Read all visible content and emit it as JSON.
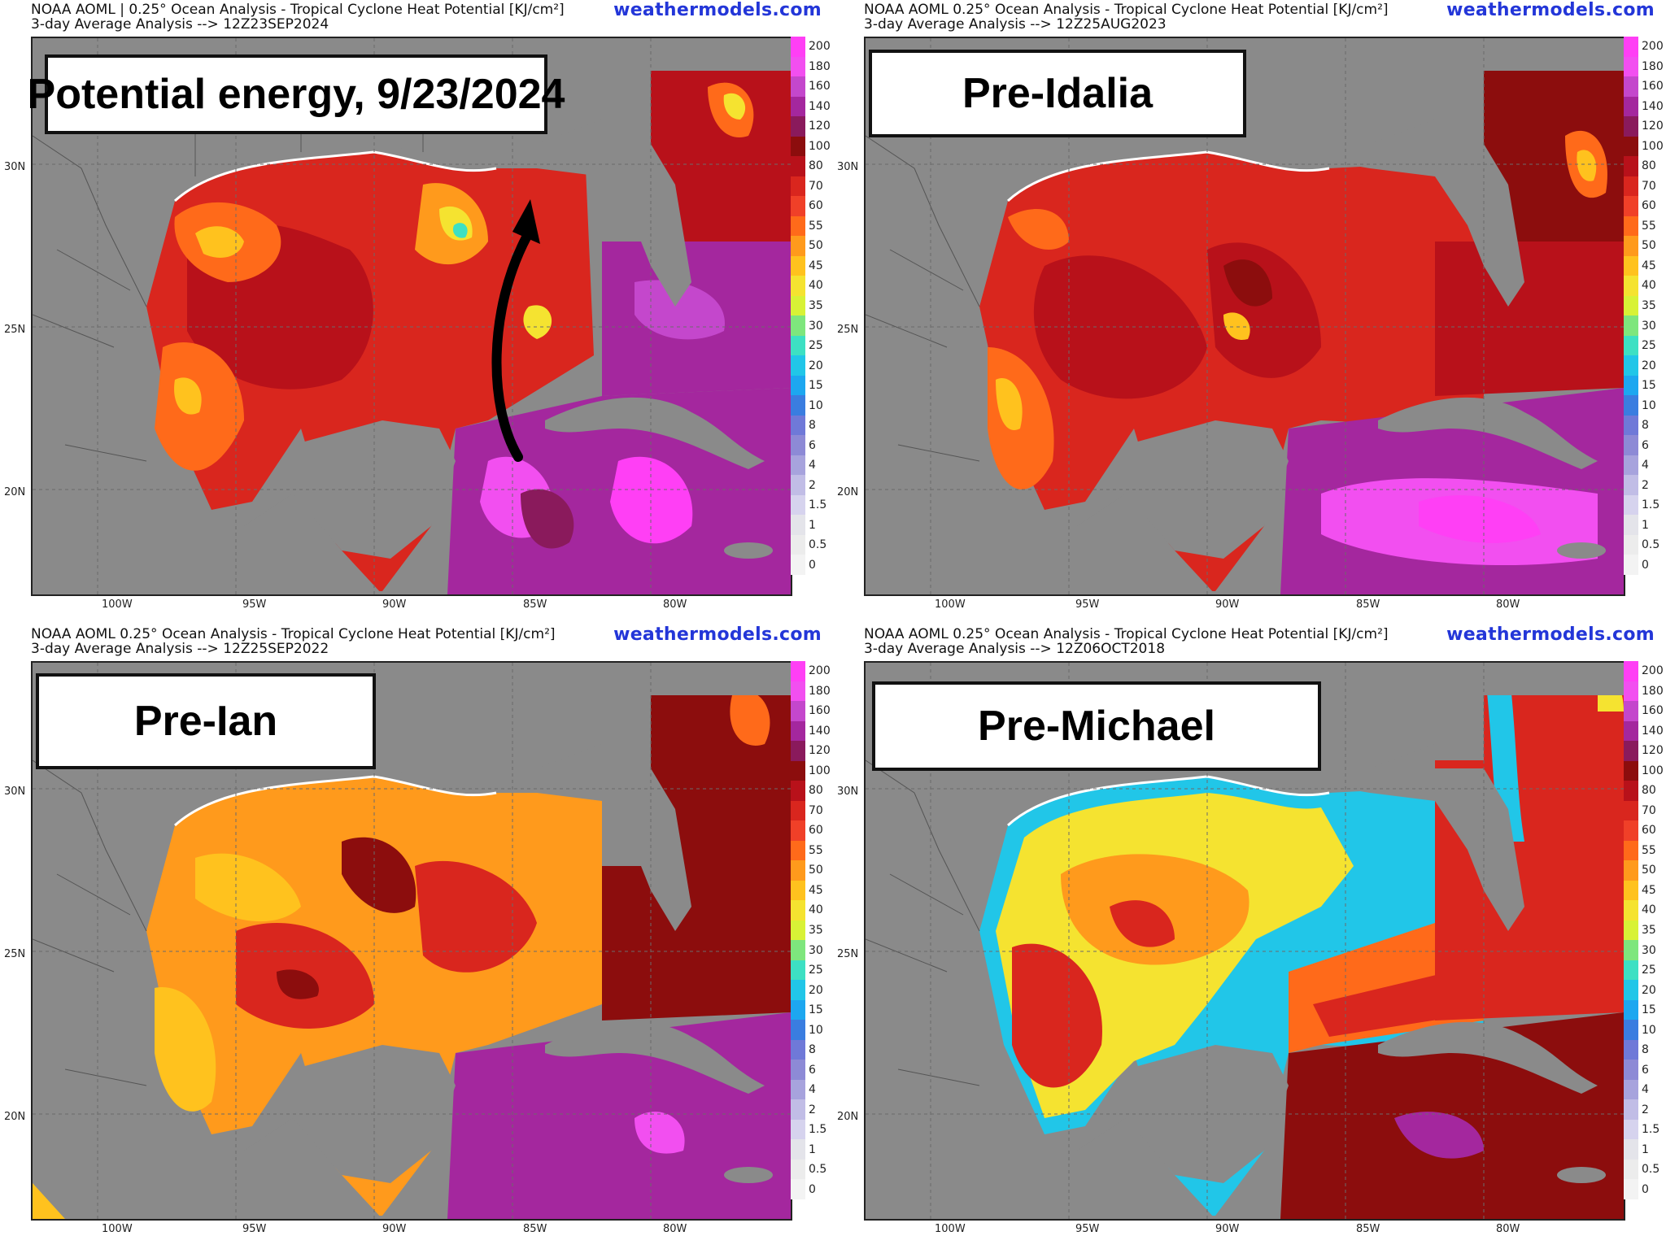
{
  "brand": "weathermodels.com",
  "colorbar": {
    "ticks": [
      "200",
      "180",
      "160",
      "140",
      "120",
      "100",
      "80",
      "70",
      "60",
      "55",
      "50",
      "45",
      "40",
      "35",
      "30",
      "25",
      "20",
      "15",
      "10",
      "8",
      "6",
      "4",
      "2",
      "1.5",
      "1",
      "0.5",
      "0"
    ],
    "colors": [
      "#ff3ff5",
      "#f24ff0",
      "#c447cc",
      "#a4279e",
      "#8a1a5c",
      "#8c0d0d",
      "#b8111a",
      "#d9261e",
      "#f04028",
      "#ff6a1a",
      "#ff9a1c",
      "#ffc21e",
      "#f5e330",
      "#d8f236",
      "#7ee67d",
      "#3de0c3",
      "#21c6e8",
      "#1da7f0",
      "#3a7de0",
      "#6f79d8",
      "#8d8ad6",
      "#a7a3dd",
      "#c1bde6",
      "#d6d3ee",
      "#e4e4ea",
      "#ececec",
      "#f3f3f3"
    ]
  },
  "lat_labels": [
    "30N",
    "25N",
    "20N"
  ],
  "lon_labels": [
    "100W",
    "95W",
    "90W",
    "85W",
    "80W"
  ],
  "panels": [
    {
      "title_line1": "NOAA AOML | 0.25° Ocean Analysis - Tropical Cyclone Heat Potential [KJ/cm²]",
      "title_line2": "3-day Average Analysis --> 12Z23SEP2024",
      "label": "Potential energy, 9/23/2024",
      "has_arrow": true
    },
    {
      "title_line1": "NOAA AOML 0.25° Ocean Analysis - Tropical Cyclone Heat Potential [KJ/cm²]",
      "title_line2": "3-day Average Analysis --> 12Z25AUG2023",
      "label": "Pre-Idalia",
      "has_arrow": false
    },
    {
      "title_line1": "NOAA AOML 0.25° Ocean Analysis - Tropical Cyclone Heat Potential [KJ/cm²]",
      "title_line2": "3-day Average Analysis --> 12Z25SEP2022",
      "label": "Pre-Ian",
      "has_arrow": false
    },
    {
      "title_line1": "NOAA AOML 0.25° Ocean Analysis - Tropical Cyclone Heat Potential [KJ/cm²]",
      "title_line2": "3-day Average Analysis --> 12Z06OCT2018",
      "label": "Pre-Michael",
      "has_arrow": false
    }
  ]
}
